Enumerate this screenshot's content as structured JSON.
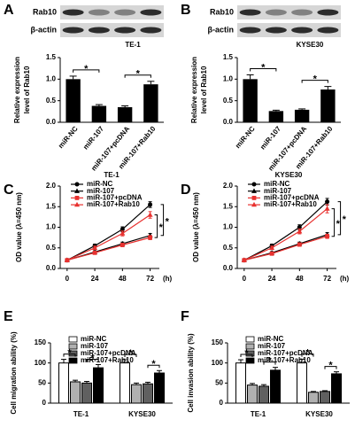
{
  "chart_data": [
    {
      "type": "bar",
      "panel": "A",
      "title": "TE-1",
      "blot_labels": [
        "Rab10",
        "β-actin"
      ],
      "ylabel": [
        "Relative expression",
        "level of Rab10"
      ],
      "categories": [
        "miR-NC",
        "miR-107",
        "miR-107+pcDNA",
        "miR-107+Rab10"
      ],
      "values": [
        1.0,
        0.38,
        0.35,
        0.88
      ],
      "errors": [
        0.07,
        0.03,
        0.03,
        0.07
      ],
      "color": "#000000",
      "ylim": [
        0,
        1.5
      ],
      "yticks": [
        {
          "value": 0,
          "label": "0.0"
        },
        0.5,
        {
          "value": 1,
          "label": "1.0"
        },
        1.5
      ],
      "annotations": [
        "*",
        "*"
      ]
    },
    {
      "type": "bar",
      "panel": "B",
      "title": "KYSE30",
      "blot_labels": [
        "Rab10",
        "β-actin"
      ],
      "ylabel": [
        "Relative expression",
        "level of Rab10"
      ],
      "categories": [
        "miR-NC",
        "miR-107",
        "miR-107+pcDNA",
        "miR-107+Rab10"
      ],
      "values": [
        1.0,
        0.26,
        0.29,
        0.76
      ],
      "errors": [
        0.1,
        0.02,
        0.02,
        0.07
      ],
      "color": "#000000",
      "ylim": [
        0,
        1.5
      ],
      "yticks": [
        {
          "value": 0,
          "label": "0.0"
        },
        0.5,
        {
          "value": 1,
          "label": "1.0"
        },
        1.5
      ],
      "annotations": [
        "*",
        "*"
      ]
    },
    {
      "type": "line",
      "panel": "C",
      "title": "TE-1",
      "ylabel": "OD value (λ=450 nm)",
      "x_unit": "(h)",
      "x": [
        0,
        24,
        48,
        72
      ],
      "xlim": [
        -6,
        80
      ],
      "xticks": [
        0,
        24,
        48,
        72
      ],
      "ylim": [
        0,
        2
      ],
      "yticks": [
        {
          "value": 0,
          "label": "0.0"
        },
        0.5,
        {
          "value": 1,
          "label": "1.0"
        },
        1.5,
        {
          "value": 2,
          "label": "2.0"
        }
      ],
      "legend": "upper-left",
      "series": [
        {
          "name": "miR-NC",
          "color": "#000000",
          "marker": "circle",
          "values": [
            0.2,
            0.55,
            0.95,
            1.55
          ],
          "errors": [
            0.02,
            0.04,
            0.06,
            0.07
          ]
        },
        {
          "name": "miR-107",
          "color": "#000000",
          "marker": "triangle",
          "values": [
            0.2,
            0.4,
            0.6,
            0.8
          ],
          "errors": [
            0.02,
            0.03,
            0.04,
            0.05
          ]
        },
        {
          "name": "miR-107+pcDNA",
          "color": "#e8312f",
          "marker": "square",
          "values": [
            0.2,
            0.38,
            0.57,
            0.75
          ],
          "errors": [
            0.02,
            0.03,
            0.04,
            0.05
          ]
        },
        {
          "name": "miR-107+Rab10",
          "color": "#e8312f",
          "marker": "triangle",
          "values": [
            0.2,
            0.5,
            0.85,
            1.3
          ],
          "errors": [
            0.02,
            0.04,
            0.06,
            0.08
          ]
        }
      ],
      "annotations": [
        "*",
        "*"
      ]
    },
    {
      "type": "line",
      "panel": "D",
      "title": "KYSE30",
      "ylabel": "OD value (λ=450 nm)",
      "x_unit": "(h)",
      "x": [
        0,
        24,
        48,
        72
      ],
      "xlim": [
        -6,
        80
      ],
      "xticks": [
        0,
        24,
        48,
        72
      ],
      "ylim": [
        0,
        2
      ],
      "yticks": [
        {
          "value": 0,
          "label": "0.0"
        },
        0.5,
        {
          "value": 1,
          "label": "1.0"
        },
        1.5,
        {
          "value": 2,
          "label": "2.0"
        }
      ],
      "legend": "upper-left",
      "series": [
        {
          "name": "miR-NC",
          "color": "#000000",
          "marker": "circle",
          "values": [
            0.2,
            0.55,
            1.0,
            1.62
          ],
          "errors": [
            0.02,
            0.04,
            0.06,
            0.08
          ]
        },
        {
          "name": "miR-107",
          "color": "#000000",
          "marker": "triangle",
          "values": [
            0.2,
            0.38,
            0.6,
            0.82
          ],
          "errors": [
            0.02,
            0.03,
            0.04,
            0.05
          ]
        },
        {
          "name": "miR-107+pcDNA",
          "color": "#e8312f",
          "marker": "square",
          "values": [
            0.2,
            0.36,
            0.58,
            0.78
          ],
          "errors": [
            0.02,
            0.03,
            0.04,
            0.05
          ]
        },
        {
          "name": "miR-107+Rab10",
          "color": "#e8312f",
          "marker": "triangle",
          "values": [
            0.2,
            0.5,
            0.9,
            1.45
          ],
          "errors": [
            0.02,
            0.04,
            0.06,
            0.1
          ]
        }
      ],
      "annotations": [
        "*",
        "*"
      ]
    },
    {
      "type": "grouped_bar",
      "panel": "E",
      "ylabel": "Cell migration ability (%)",
      "categories": [
        "TE-1",
        "KYSE30"
      ],
      "ylim": [
        0,
        150
      ],
      "yticks": [
        0,
        50,
        100,
        150
      ],
      "legend": "upper-left",
      "series": [
        {
          "name": "miR-NC",
          "color": "#ffffff",
          "values": [
            100,
            100
          ],
          "errors": [
            9,
            8
          ]
        },
        {
          "name": "miR-107",
          "color": "#b0b0b0",
          "values": [
            53,
            46
          ],
          "errors": [
            4,
            4
          ]
        },
        {
          "name": "miR-107+pcDNA",
          "color": "#606060",
          "values": [
            50,
            48
          ],
          "errors": [
            4,
            4
          ]
        },
        {
          "name": "miR-107+Rab10",
          "color": "#000000",
          "values": [
            88,
            75
          ],
          "errors": [
            8,
            6
          ]
        }
      ],
      "annotations": [
        "*",
        "*",
        "*",
        "*"
      ]
    },
    {
      "type": "grouped_bar",
      "panel": "F",
      "ylabel": "Cell invasion ability (%)",
      "categories": [
        "TE-1",
        "KYSE30"
      ],
      "ylim": [
        0,
        150
      ],
      "yticks": [
        0,
        50,
        100,
        150
      ],
      "legend": "upper-left",
      "series": [
        {
          "name": "miR-NC",
          "color": "#ffffff",
          "values": [
            100,
            100
          ],
          "errors": [
            8,
            9
          ]
        },
        {
          "name": "miR-107",
          "color": "#b0b0b0",
          "values": [
            45,
            27
          ],
          "errors": [
            4,
            2
          ]
        },
        {
          "name": "miR-107+pcDNA",
          "color": "#606060",
          "values": [
            42,
            29
          ],
          "errors": [
            4,
            2
          ]
        },
        {
          "name": "miR-107+Rab10",
          "color": "#000000",
          "values": [
            82,
            73
          ],
          "errors": [
            7,
            5
          ]
        }
      ],
      "annotations": [
        "*",
        "*",
        "*",
        "*"
      ]
    }
  ]
}
